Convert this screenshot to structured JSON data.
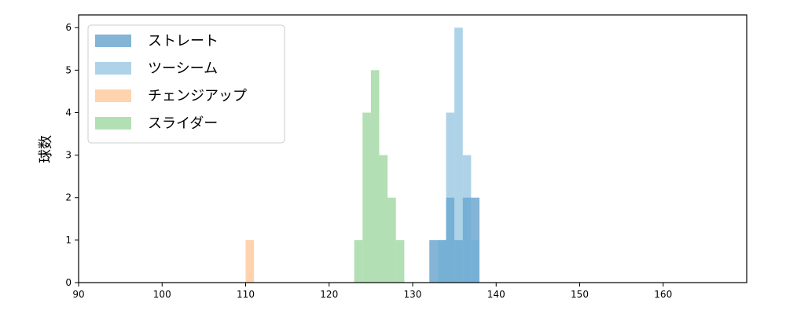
{
  "chart_data": {
    "type": "bar",
    "title": "",
    "xlabel": "",
    "ylabel": "球数",
    "xlim": [
      90,
      170
    ],
    "ylim": [
      0,
      6.3
    ],
    "xticks": [
      90,
      100,
      110,
      120,
      130,
      140,
      150,
      160
    ],
    "yticks": [
      0,
      1,
      2,
      3,
      4,
      5,
      6
    ],
    "bin_width": 1,
    "grid": false,
    "legend_position": "top-left",
    "series": [
      {
        "name": "ストレート",
        "color": "#1f77b4",
        "bins": [
          {
            "x": 132,
            "count": 1
          },
          {
            "x": 133,
            "count": 1
          },
          {
            "x": 134,
            "count": 2
          },
          {
            "x": 135,
            "count": 1
          },
          {
            "x": 136,
            "count": 2
          },
          {
            "x": 137,
            "count": 2
          }
        ]
      },
      {
        "name": "ツーシーム",
        "color": "#6baed6",
        "bins": [
          {
            "x": 133,
            "count": 1
          },
          {
            "x": 134,
            "count": 4
          },
          {
            "x": 135,
            "count": 6
          },
          {
            "x": 136,
            "count": 3
          },
          {
            "x": 137,
            "count": 1
          }
        ]
      },
      {
        "name": "チェンジアップ",
        "color": "#fdae6b",
        "bins": [
          {
            "x": 110,
            "count": 1
          }
        ]
      },
      {
        "name": "スライダー",
        "color": "#74c476",
        "bins": [
          {
            "x": 123,
            "count": 1
          },
          {
            "x": 124,
            "count": 4
          },
          {
            "x": 125,
            "count": 5
          },
          {
            "x": 126,
            "count": 3
          },
          {
            "x": 127,
            "count": 2
          },
          {
            "x": 128,
            "count": 1
          }
        ]
      }
    ]
  }
}
